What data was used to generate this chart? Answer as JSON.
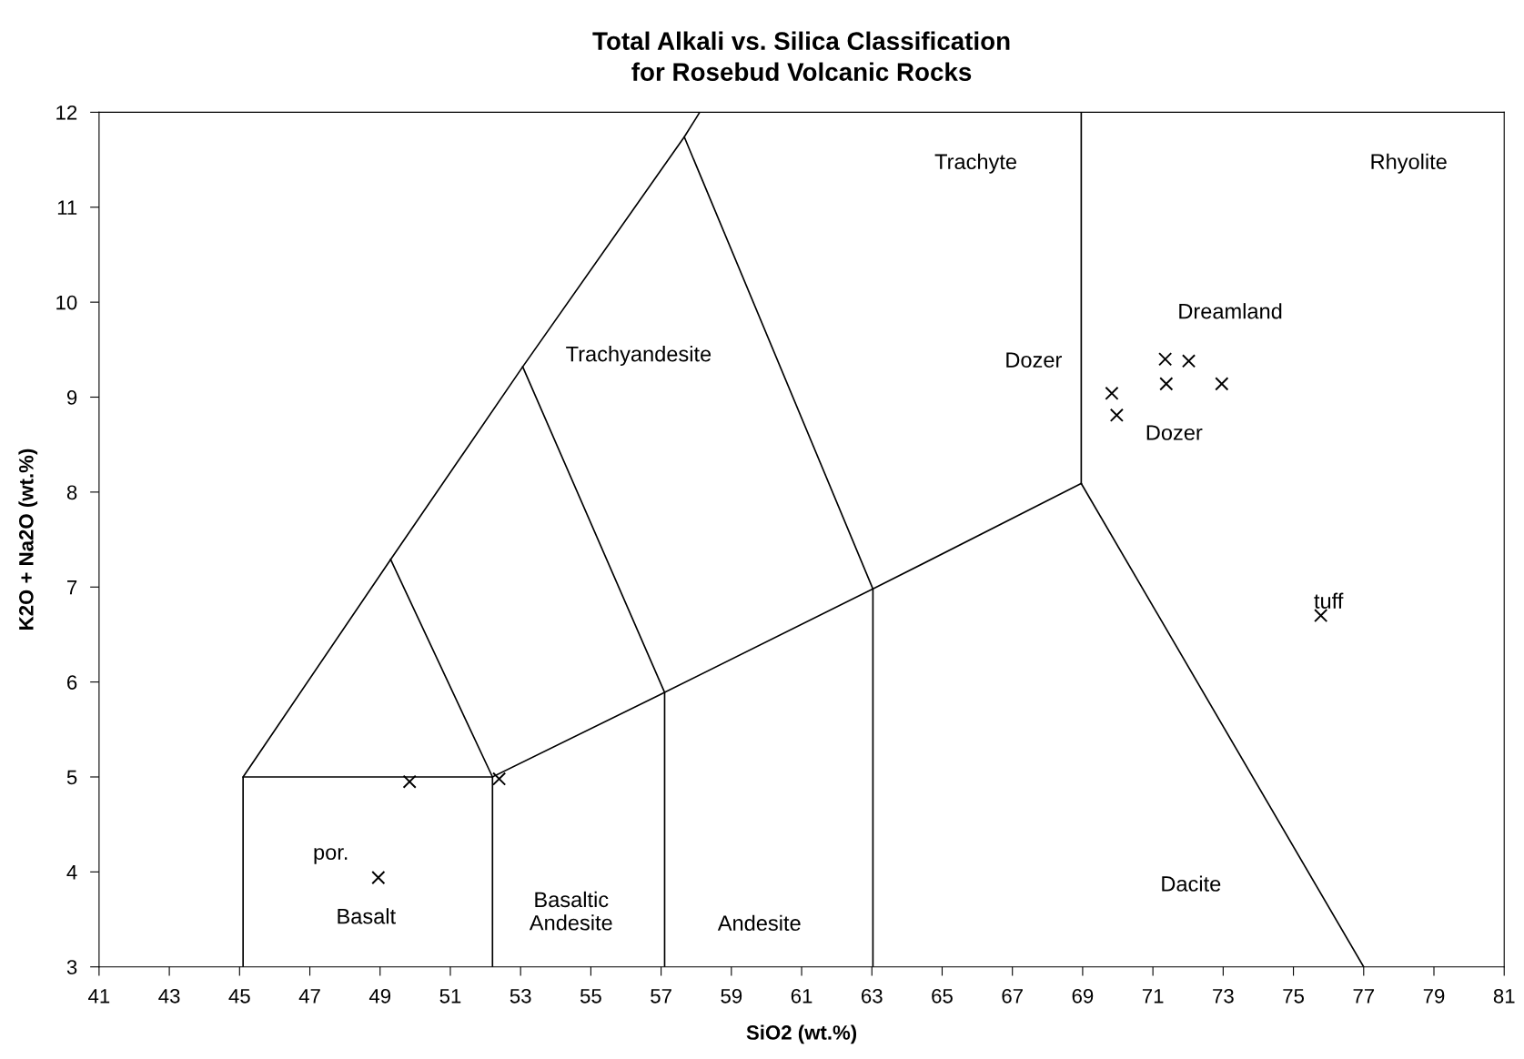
{
  "chart_data": {
    "type": "scatter",
    "title": "Total Alkali vs. Silica Classification\nfor Rosebud Volcanic Rocks",
    "xlabel": "SiO2 (wt.%)",
    "ylabel": "K2O + Na2O (wt.%)",
    "xlim": [
      41,
      81
    ],
    "ylim": [
      3,
      12
    ],
    "xticks": [
      41,
      43,
      45,
      47,
      49,
      51,
      53,
      55,
      57,
      59,
      61,
      63,
      65,
      67,
      69,
      71,
      73,
      75,
      77,
      79,
      81
    ],
    "yticks": [
      3,
      4,
      5,
      6,
      7,
      8,
      9,
      10,
      11,
      12
    ],
    "grid": false,
    "legend": false,
    "series": [
      {
        "marker": "cross",
        "color": "#000000",
        "x": [
          49.84,
          52.39,
          48.95,
          69.83,
          69.97,
          71.35,
          72.02,
          71.38,
          72.96,
          75.78
        ],
        "values": [
          4.95,
          4.98,
          3.94,
          9.04,
          8.81,
          9.4,
          9.38,
          9.14,
          9.14,
          6.7
        ]
      },
      {
        "type": "line",
        "marker": "none",
        "color": "#000000",
        "x": [
          45.1,
          45.1,
          52.2,
          52.2
        ],
        "values": [
          3,
          5,
          5,
          3
        ]
      },
      {
        "type": "line",
        "marker": "none",
        "color": "#000000",
        "x": [
          45.1,
          49.3,
          53.06,
          57.66,
          58.1
        ],
        "values": [
          5,
          7.29,
          9.32,
          11.74,
          12
        ]
      },
      {
        "type": "line",
        "marker": "none",
        "color": "#000000",
        "x": [
          49.3,
          52.2
        ],
        "values": [
          7.29,
          5
        ]
      },
      {
        "type": "line",
        "marker": "none",
        "color": "#000000",
        "x": [
          53.06,
          57.1,
          57.1
        ],
        "values": [
          9.32,
          5.89,
          3
        ]
      },
      {
        "type": "line",
        "marker": "none",
        "color": "#000000",
        "x": [
          57.66,
          63.03,
          63.03
        ],
        "values": [
          11.74,
          6.98,
          3
        ]
      },
      {
        "type": "line",
        "marker": "none",
        "color": "#000000",
        "x": [
          52.2,
          57.1,
          63.03,
          68.96
        ],
        "values": [
          5,
          5.89,
          6.98,
          8.09
        ]
      },
      {
        "type": "line",
        "marker": "none",
        "color": "#000000",
        "x": [
          68.96,
          68.96
        ],
        "values": [
          8.09,
          12
        ]
      },
      {
        "type": "line",
        "marker": "none",
        "color": "#000000",
        "x": [
          68.96,
          77
        ],
        "values": [
          8.09,
          3
        ]
      }
    ],
    "annotations": [
      "Trachyte",
      "Rhyolite",
      "Dreamland",
      "Dozer",
      "Dozer",
      "Trachyandesite",
      "tuff",
      "Dacite",
      "Andesite",
      "Basaltic\nAndesite",
      "Basalt",
      "por."
    ]
  }
}
